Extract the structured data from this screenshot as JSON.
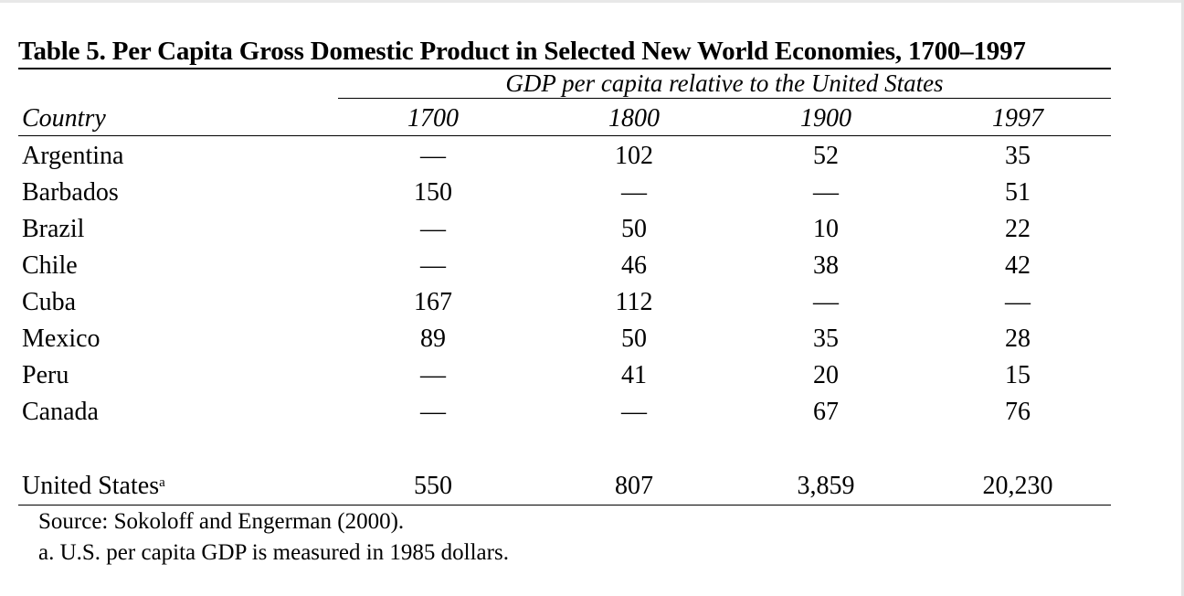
{
  "table": {
    "title": "Table 5. Per Capita Gross Domestic Product in Selected New World Economies, 1700–1997",
    "spanner": "GDP per capita relative to the United States",
    "header": {
      "country": "Country",
      "years": [
        "1700",
        "1800",
        "1900",
        "1997"
      ]
    },
    "rows": [
      {
        "country": "Argentina",
        "values": [
          "—",
          "102",
          "52",
          "35"
        ]
      },
      {
        "country": "Barbados",
        "values": [
          "150",
          "—",
          "—",
          "51"
        ]
      },
      {
        "country": "Brazil",
        "values": [
          "—",
          "50",
          "10",
          "22"
        ]
      },
      {
        "country": "Chile",
        "values": [
          "—",
          "46",
          "38",
          "42"
        ]
      },
      {
        "country": "Cuba",
        "values": [
          "167",
          "112",
          "—",
          "—"
        ]
      },
      {
        "country": "Mexico",
        "values": [
          "89",
          "50",
          "35",
          "28"
        ]
      },
      {
        "country": "Peru",
        "values": [
          "—",
          "41",
          "20",
          "15"
        ]
      },
      {
        "country": "Canada",
        "values": [
          "—",
          "—",
          "67",
          "76"
        ]
      }
    ],
    "us_row": {
      "country": "United States",
      "footnote_marker": "a",
      "values": [
        "550",
        "807",
        "3,859",
        "20,230"
      ]
    },
    "source": "Source: Sokoloff and Engerman (2000).",
    "footnote": "a. U.S. per capita GDP is measured in 1985 dollars."
  }
}
